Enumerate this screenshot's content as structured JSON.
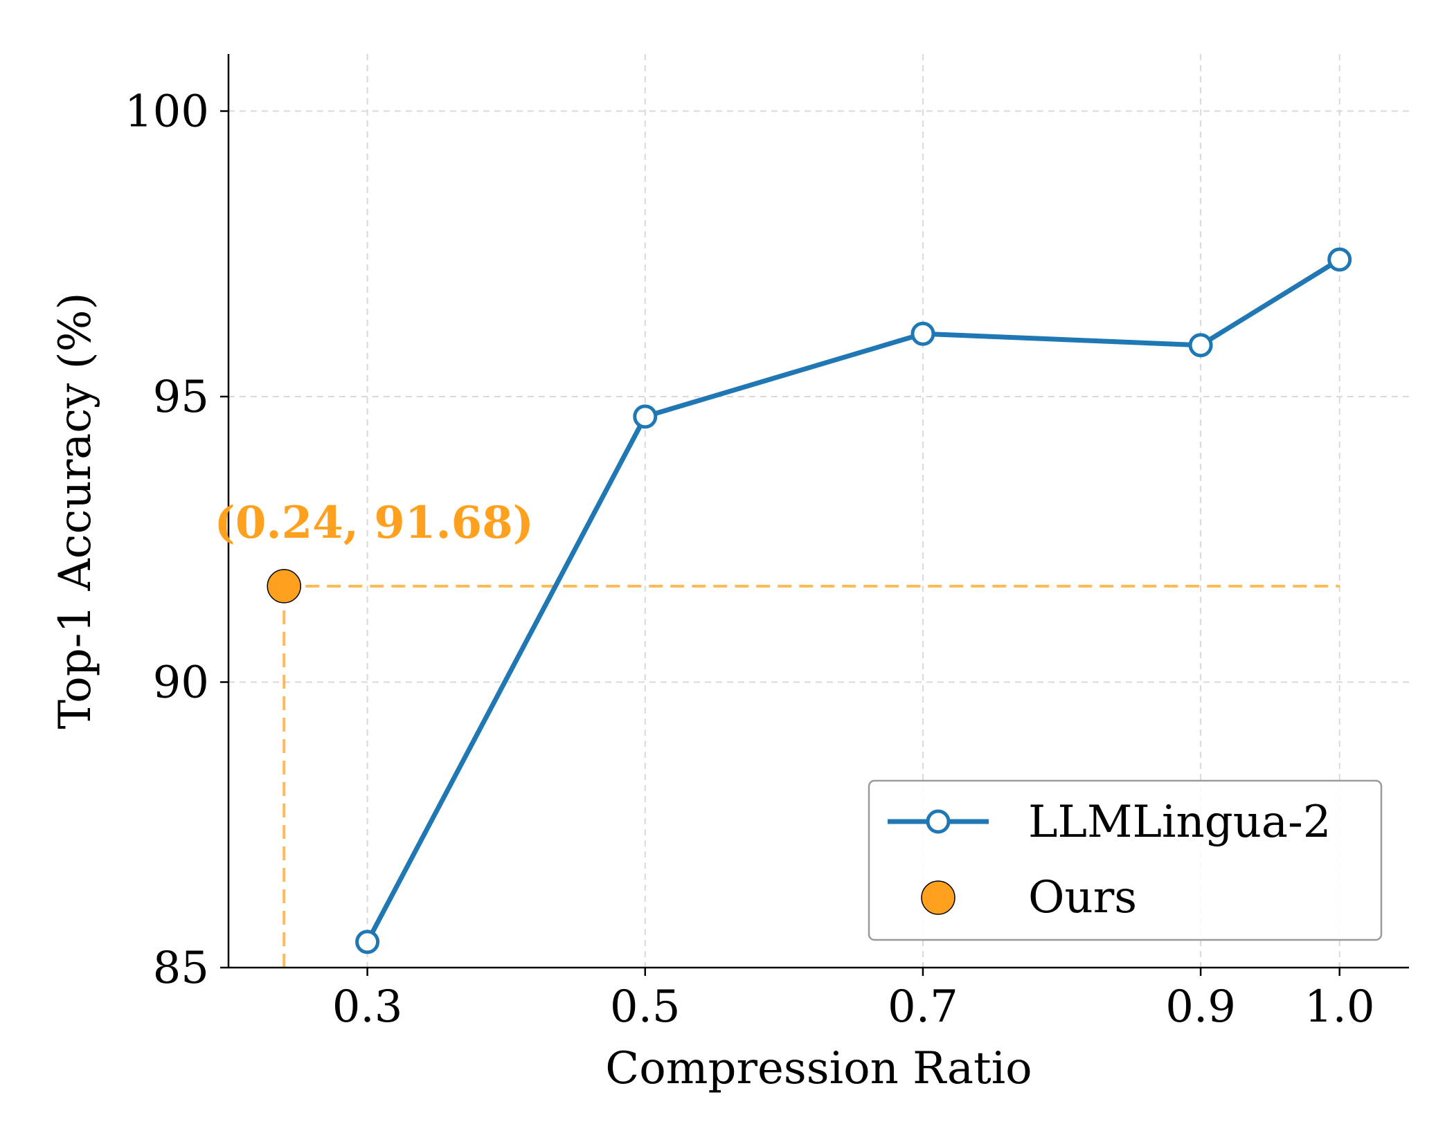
{
  "chart_data": {
    "type": "line",
    "title": "",
    "xlabel": "Compression Ratio",
    "ylabel": "Top-1 Accuracy (%)",
    "xlim": [
      0.2,
      1.05
    ],
    "ylim": [
      85,
      101
    ],
    "xticks": [
      0.3,
      0.5,
      0.7,
      0.9,
      1.0
    ],
    "xtick_labels": [
      "0.3",
      "0.5",
      "0.7",
      "0.9",
      "1.0"
    ],
    "yticks": [
      85,
      90,
      95,
      100
    ],
    "ytick_labels": [
      "85",
      "90",
      "95",
      "100"
    ],
    "grid": true,
    "legend_position": "bottom-right",
    "series": [
      {
        "name": "LLMLingua-2",
        "color": "#1f77b4",
        "marker": "hollow-circle",
        "x": [
          0.3,
          0.5,
          0.7,
          0.9,
          1.0
        ],
        "y": [
          85.45,
          94.65,
          96.1,
          95.9,
          97.4
        ]
      },
      {
        "name": "Ours",
        "color": "#ffa11f",
        "marker": "filled-circle",
        "x": [
          0.24
        ],
        "y": [
          91.68
        ]
      }
    ],
    "annotations": [
      {
        "text": "(0.24, 91.68)",
        "x": 0.24,
        "y": 91.68,
        "color": "#ffa11f"
      }
    ],
    "reference_lines": {
      "color": "#ffa11f",
      "horizontal": {
        "y": 91.68,
        "x_from": 0.24,
        "x_to": 1.0
      },
      "vertical": {
        "x": 0.24,
        "y_from": 85,
        "y_to": 91.68
      }
    }
  }
}
